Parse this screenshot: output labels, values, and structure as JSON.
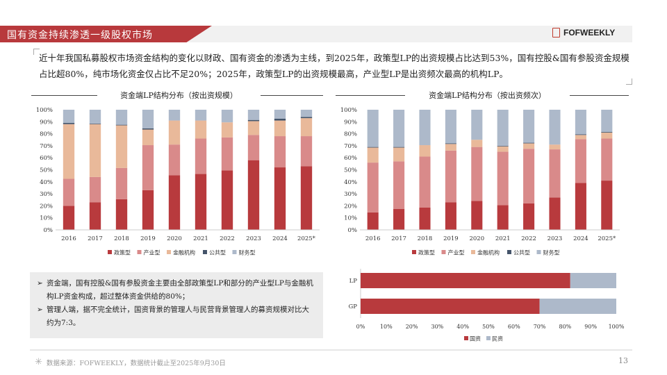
{
  "header": {
    "title": "国有资金持续渗透一级股权市场",
    "logo": "FOFWEEKLY"
  },
  "summary": "近十年我国私募股权市场资金结构的变化以财政、国有资金的渗透为主线，到2025年，政策型LP的出资规模占比达到53%，国有控股&国有参股资金规模占比超80%，纯市场化资金仅占比不足20%；2025年，政策型LP的出资规模最高，产业型LP是出资频次最高的机构LP。",
  "notes": [
    "资金端，国有控股&国有参股资金主要由全部政策型LP和部分的产业型LP与金融机构LP资金构成，超过整体资金供给的80%；",
    "管理人端，据不完全统计，国资背景的管理人与民营背景管理人的募资规模对比大约为7:3。"
  ],
  "footer": {
    "source": "数据来源：FOFWEEKLY，数据统计截止至2025年9月30日",
    "page": "13"
  },
  "chart_data": [
    {
      "type": "bar",
      "stacked": true,
      "title": "资金端LP结构分布（按出资规模）",
      "categories": [
        "2016",
        "2017",
        "2018",
        "2019",
        "2020",
        "2021",
        "2022",
        "2023",
        "2024",
        "2025*"
      ],
      "ylim": [
        0,
        100
      ],
      "yticks": [
        "0%",
        "10%",
        "20%",
        "30%",
        "40%",
        "50%",
        "60%",
        "70%",
        "80%",
        "90%",
        "100%"
      ],
      "legend": "bottom",
      "series": [
        {
          "name": "政策型",
          "color": "#b83a3d",
          "values": [
            20,
            23,
            25.5,
            33,
            45.5,
            46.5,
            49.5,
            58,
            52,
            53
          ]
        },
        {
          "name": "产业型",
          "color": "#d98a8a",
          "values": [
            22.5,
            21,
            26,
            37.5,
            25.5,
            29.5,
            27.5,
            21,
            26,
            25
          ]
        },
        {
          "name": "金融机构",
          "color": "#e9b99a",
          "values": [
            45.5,
            44,
            35.5,
            13,
            20,
            15,
            12.5,
            11.5,
            13,
            15
          ]
        },
        {
          "name": "公共型",
          "color": "#44546a",
          "values": [
            1,
            0.5,
            0.5,
            1,
            0,
            0,
            0,
            1,
            1.5,
            1
          ]
        },
        {
          "name": "财务型",
          "color": "#adb9ca",
          "values": [
            11,
            11.5,
            12.5,
            15.5,
            9,
            9,
            10.5,
            8.5,
            7.5,
            6
          ]
        }
      ]
    },
    {
      "type": "bar",
      "stacked": true,
      "title": "资金端LP结构分布（按出资频次）",
      "categories": [
        "2016",
        "2017",
        "2018",
        "2019",
        "2020",
        "2021",
        "2022",
        "2023",
        "2024",
        "2025*"
      ],
      "ylim": [
        0,
        100
      ],
      "yticks": [
        "0%",
        "10%",
        "20%",
        "30%",
        "40%",
        "50%",
        "60%",
        "70%",
        "80%",
        "90%",
        "100%"
      ],
      "legend": "bottom",
      "series": [
        {
          "name": "政策型",
          "color": "#b83a3d",
          "values": [
            14.5,
            17.5,
            18.5,
            23,
            24,
            20.5,
            22,
            27,
            39,
            41
          ]
        },
        {
          "name": "产业型",
          "color": "#d98a8a",
          "values": [
            41.5,
            39.5,
            42.5,
            43,
            45,
            44.5,
            45.5,
            40,
            36.5,
            35
          ]
        },
        {
          "name": "金融机构",
          "color": "#e9b99a",
          "values": [
            12.5,
            11.5,
            9.5,
            5.5,
            6,
            4.5,
            4.5,
            4,
            3.5,
            5
          ]
        },
        {
          "name": "公共型",
          "color": "#44546a",
          "values": [
            0.5,
            0.5,
            0,
            0.5,
            0,
            0.5,
            0.5,
            0,
            0.5,
            0.5
          ]
        },
        {
          "name": "财务型",
          "color": "#adb9ca",
          "values": [
            31,
            31,
            29.5,
            28,
            25,
            30,
            27.5,
            29,
            20.5,
            18.5
          ]
        }
      ]
    },
    {
      "type": "bar",
      "orientation": "horizontal",
      "stacked": true,
      "categories": [
        "LP",
        "GP"
      ],
      "xlim": [
        0,
        100
      ],
      "xticks": [
        "0%",
        "10%",
        "20%",
        "30%",
        "40%",
        "50%",
        "60%",
        "70%",
        "80%",
        "90%",
        "100%"
      ],
      "legend": "bottom",
      "series": [
        {
          "name": "国资",
          "color": "#b83a3d",
          "values": [
            82,
            70
          ]
        },
        {
          "name": "民资",
          "color": "#adb9ca",
          "values": [
            18,
            30
          ]
        }
      ]
    }
  ]
}
